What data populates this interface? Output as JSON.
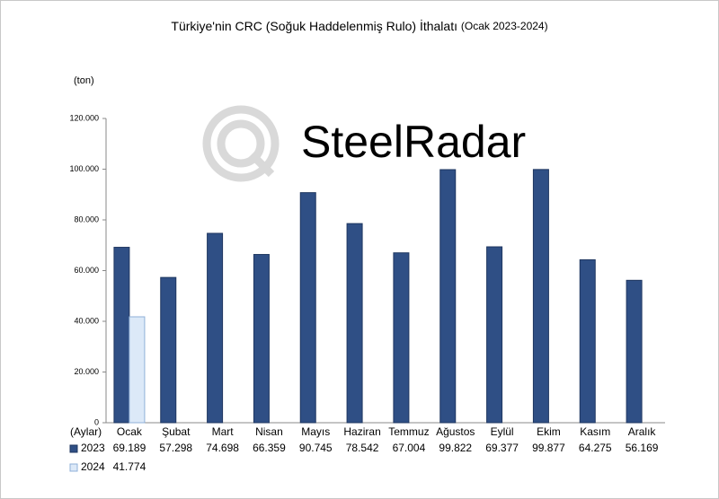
{
  "chart_data": {
    "type": "bar",
    "title": "Türkiye'nin CRC (Soğuk Haddelenmiş Rulo) İthalatı",
    "subtitle": "(Ocak 2023-2024)",
    "y_label": "(ton)",
    "x_label": "(Aylar)",
    "watermark": "SteelRadar",
    "categories": [
      "Ocak",
      "Şubat",
      "Mart",
      "Nisan",
      "Mayıs",
      "Haziran",
      "Temmuz",
      "Ağustos",
      "Eylül",
      "Ekim",
      "Kasım",
      "Aralık"
    ],
    "series": [
      {
        "name": "2023",
        "color": "#2f4f85",
        "values": [
          69189,
          57298,
          74698,
          66359,
          90745,
          78542,
          67004,
          99822,
          69377,
          99877,
          64275,
          56169
        ],
        "value_labels": [
          "69.189",
          "57.298",
          "74.698",
          "66.359",
          "90.745",
          "78.542",
          "67.004",
          "99.822",
          "69.377",
          "99.877",
          "64.275",
          "56.169"
        ]
      },
      {
        "name": "2024",
        "color": "#dce9f8",
        "values": [
          41774,
          null,
          null,
          null,
          null,
          null,
          null,
          null,
          null,
          null,
          null,
          null
        ],
        "value_labels": [
          "41.774",
          null,
          null,
          null,
          null,
          null,
          null,
          null,
          null,
          null,
          null,
          null
        ]
      }
    ],
    "ylim": [
      0,
      120000
    ],
    "yticks": [
      0,
      {
        "value": 20000,
        "label": "20.000"
      },
      {
        "value": 40000,
        "label": "40.000"
      },
      {
        "value": 60000,
        "label": "60.000"
      },
      {
        "value": 80000,
        "label": "80.000"
      },
      {
        "value": 100000,
        "label": "100.000"
      },
      {
        "value": 120000,
        "label": "120.000"
      }
    ],
    "grid": false
  }
}
